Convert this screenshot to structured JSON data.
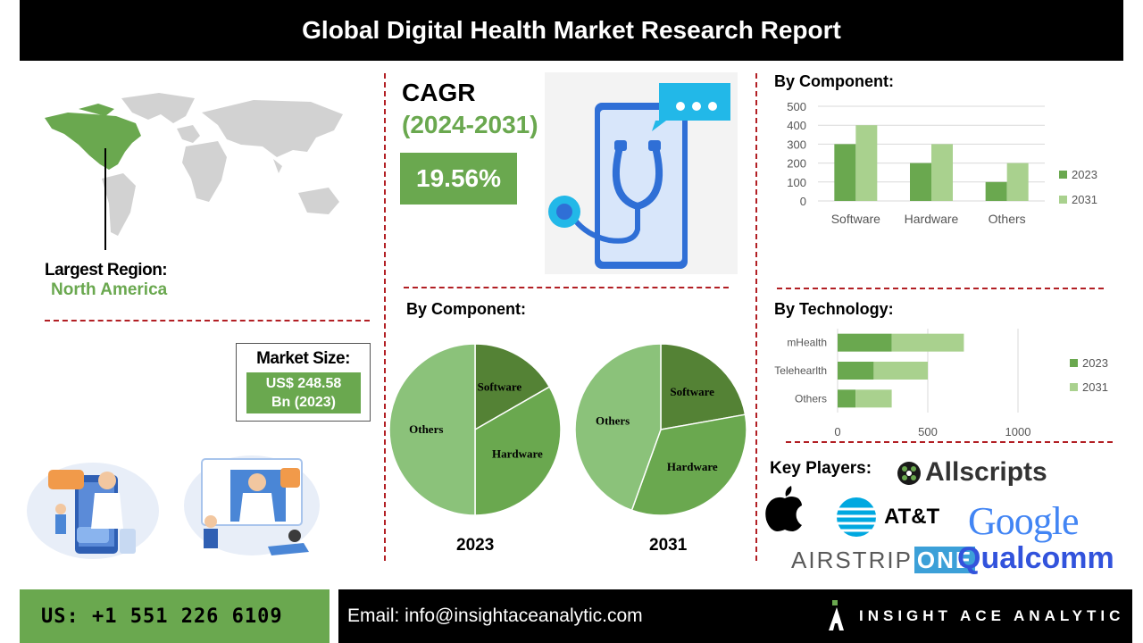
{
  "header": {
    "title": "Global Digital Health Market Research Report"
  },
  "region": {
    "label": "Largest Region:",
    "value": "North America"
  },
  "cagr": {
    "label": "CAGR",
    "period": "(2024-2031)",
    "value": "19.56%"
  },
  "market_size": {
    "label": "Market Size:",
    "value_line1": "US$ 248.58",
    "value_line2": "Bn (2023)"
  },
  "pies": {
    "title": "By Component:",
    "year_left": "2023",
    "year_right": "2031"
  },
  "key_players": {
    "label": "Key Players:",
    "logos": [
      "Allscripts",
      "AT&T",
      "Google",
      "AIRSTRIP",
      "ONE",
      "Qualcomm"
    ]
  },
  "footer": {
    "phone": "US: +1 551 226 6109",
    "email": "Email: info@insightaceanalytic.com",
    "brand": "INSIGHT ACE ANALYTIC"
  },
  "colors": {
    "dark_green": "#6aa84f",
    "light_green": "#a9d18e",
    "pie_mid": "#8bc27a",
    "accent_red": "#b21f24"
  },
  "chart_data": [
    {
      "type": "bar",
      "title": "By Component:",
      "categories": [
        "Software",
        "Hardware",
        "Others"
      ],
      "series": [
        {
          "name": "2023",
          "values": [
            300,
            200,
            100
          ],
          "color": "#6aa84f"
        },
        {
          "name": "2031",
          "values": [
            400,
            300,
            200
          ],
          "color": "#a9d18e"
        }
      ],
      "ylim": [
        0,
        500
      ],
      "yticks": [
        0,
        100,
        200,
        300,
        400,
        500
      ],
      "grid": true,
      "legend": "right"
    },
    {
      "type": "bar",
      "orientation": "horizontal",
      "stacked": true,
      "title": "By Technology:",
      "categories": [
        "mHealth",
        "Telehearlth",
        "Others"
      ],
      "series": [
        {
          "name": "2023",
          "values": [
            300,
            200,
            100
          ],
          "color": "#6aa84f"
        },
        {
          "name": "2031",
          "values": [
            400,
            300,
            200
          ],
          "color": "#a9d18e"
        }
      ],
      "xlim": [
        0,
        1000
      ],
      "xticks": [
        0,
        500,
        1000
      ],
      "grid": true,
      "legend": "right"
    },
    {
      "type": "pie",
      "title": "2023",
      "labels": [
        "Software",
        "Hardware",
        "Others"
      ],
      "values": [
        16.7,
        33.3,
        50
      ],
      "colors": [
        "#548235",
        "#6aa84f",
        "#8bc27a"
      ]
    },
    {
      "type": "pie",
      "title": "2031",
      "labels": [
        "Software",
        "Hardware",
        "Others"
      ],
      "values": [
        22.2,
        33.3,
        44.5
      ],
      "colors": [
        "#548235",
        "#6aa84f",
        "#8bc27a"
      ]
    }
  ]
}
